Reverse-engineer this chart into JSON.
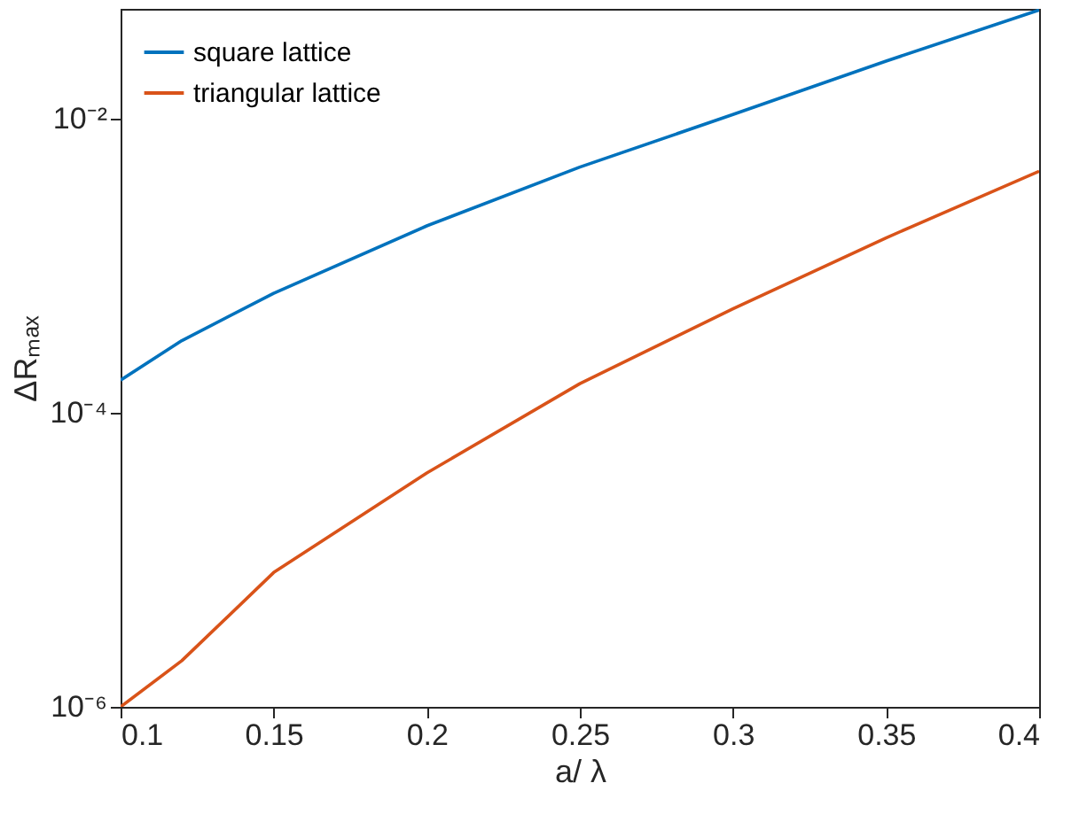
{
  "chart_data": {
    "type": "line",
    "xlabel": "a/ λ",
    "ylabel": "ΔRₘₐₓ",
    "x": [
      0.1,
      0.12,
      0.15,
      0.2,
      0.25,
      0.3,
      0.35,
      0.4
    ],
    "series": [
      {
        "name": "square lattice",
        "color": "#0072bd",
        "values": [
          0.000167,
          0.00031,
          0.00065,
          0.00187,
          0.0047,
          0.0107,
          0.0247,
          0.055
        ]
      },
      {
        "name": "triangular lattice",
        "color": "#d95319",
        "values": [
          1e-06,
          2.06e-06,
          8.2e-06,
          3.9e-05,
          0.000158,
          0.00051,
          0.00155,
          0.0044
        ]
      }
    ],
    "log": "y",
    "xlim": [
      0.1,
      0.4
    ],
    "xticks": [
      0.1,
      0.15,
      0.2,
      0.25,
      0.3,
      0.35,
      0.4
    ],
    "ylim": [
      1e-06,
      0.056
    ],
    "yticks": [
      {
        "value": 0.01,
        "label": "10⁻²"
      },
      {
        "value": 0.0001,
        "label": "10⁻⁴"
      },
      {
        "value": 1e-06,
        "label": "10⁻⁶"
      }
    ],
    "grid": false,
    "legend": "top left",
    "marker": "none",
    "line_style": "solid"
  }
}
